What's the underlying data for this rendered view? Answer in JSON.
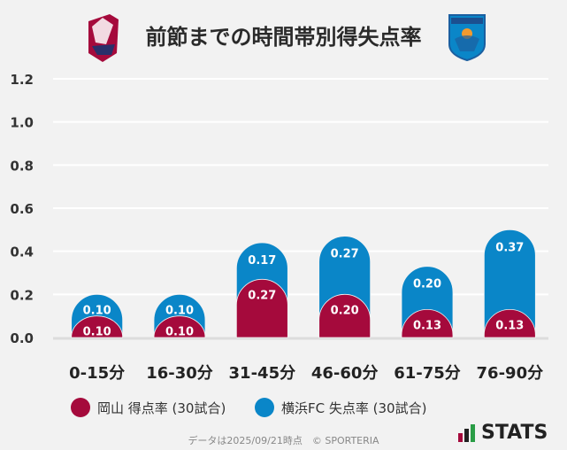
{
  "title": "前節までの時間帯別得失点率",
  "logos": {
    "left": "Fagiano Okayama",
    "right": "YOKOHAMA FC"
  },
  "colors": {
    "okayama": "#a50a3c",
    "yokohama": "#0a86c8"
  },
  "legend": [
    {
      "label": "岡山 得点率 (30試合)",
      "color": "#a50a3c"
    },
    {
      "label": "横浜FC 失点率 (30試合)",
      "color": "#0a86c8"
    }
  ],
  "footer": "データは2025/09/21時点　© SPORTERIA",
  "brand": "STATS",
  "chart_data": {
    "type": "bar",
    "stacked": true,
    "categories": [
      "0-15分",
      "16-30分",
      "31-45分",
      "46-60分",
      "61-75分",
      "76-90分"
    ],
    "series": [
      {
        "name": "岡山 得点率 (30試合)",
        "values": [
          0.1,
          0.1,
          0.27,
          0.2,
          0.13,
          0.13
        ],
        "color": "#a50a3c"
      },
      {
        "name": "横浜FC 失点率 (30試合)",
        "values": [
          0.1,
          0.1,
          0.17,
          0.27,
          0.2,
          0.37
        ],
        "color": "#0a86c8"
      }
    ],
    "ylim": [
      0,
      1.2
    ],
    "yticks": [
      "0.0",
      "0.2",
      "0.4",
      "0.6",
      "0.8",
      "1.0",
      "1.2"
    ],
    "grid": true
  }
}
